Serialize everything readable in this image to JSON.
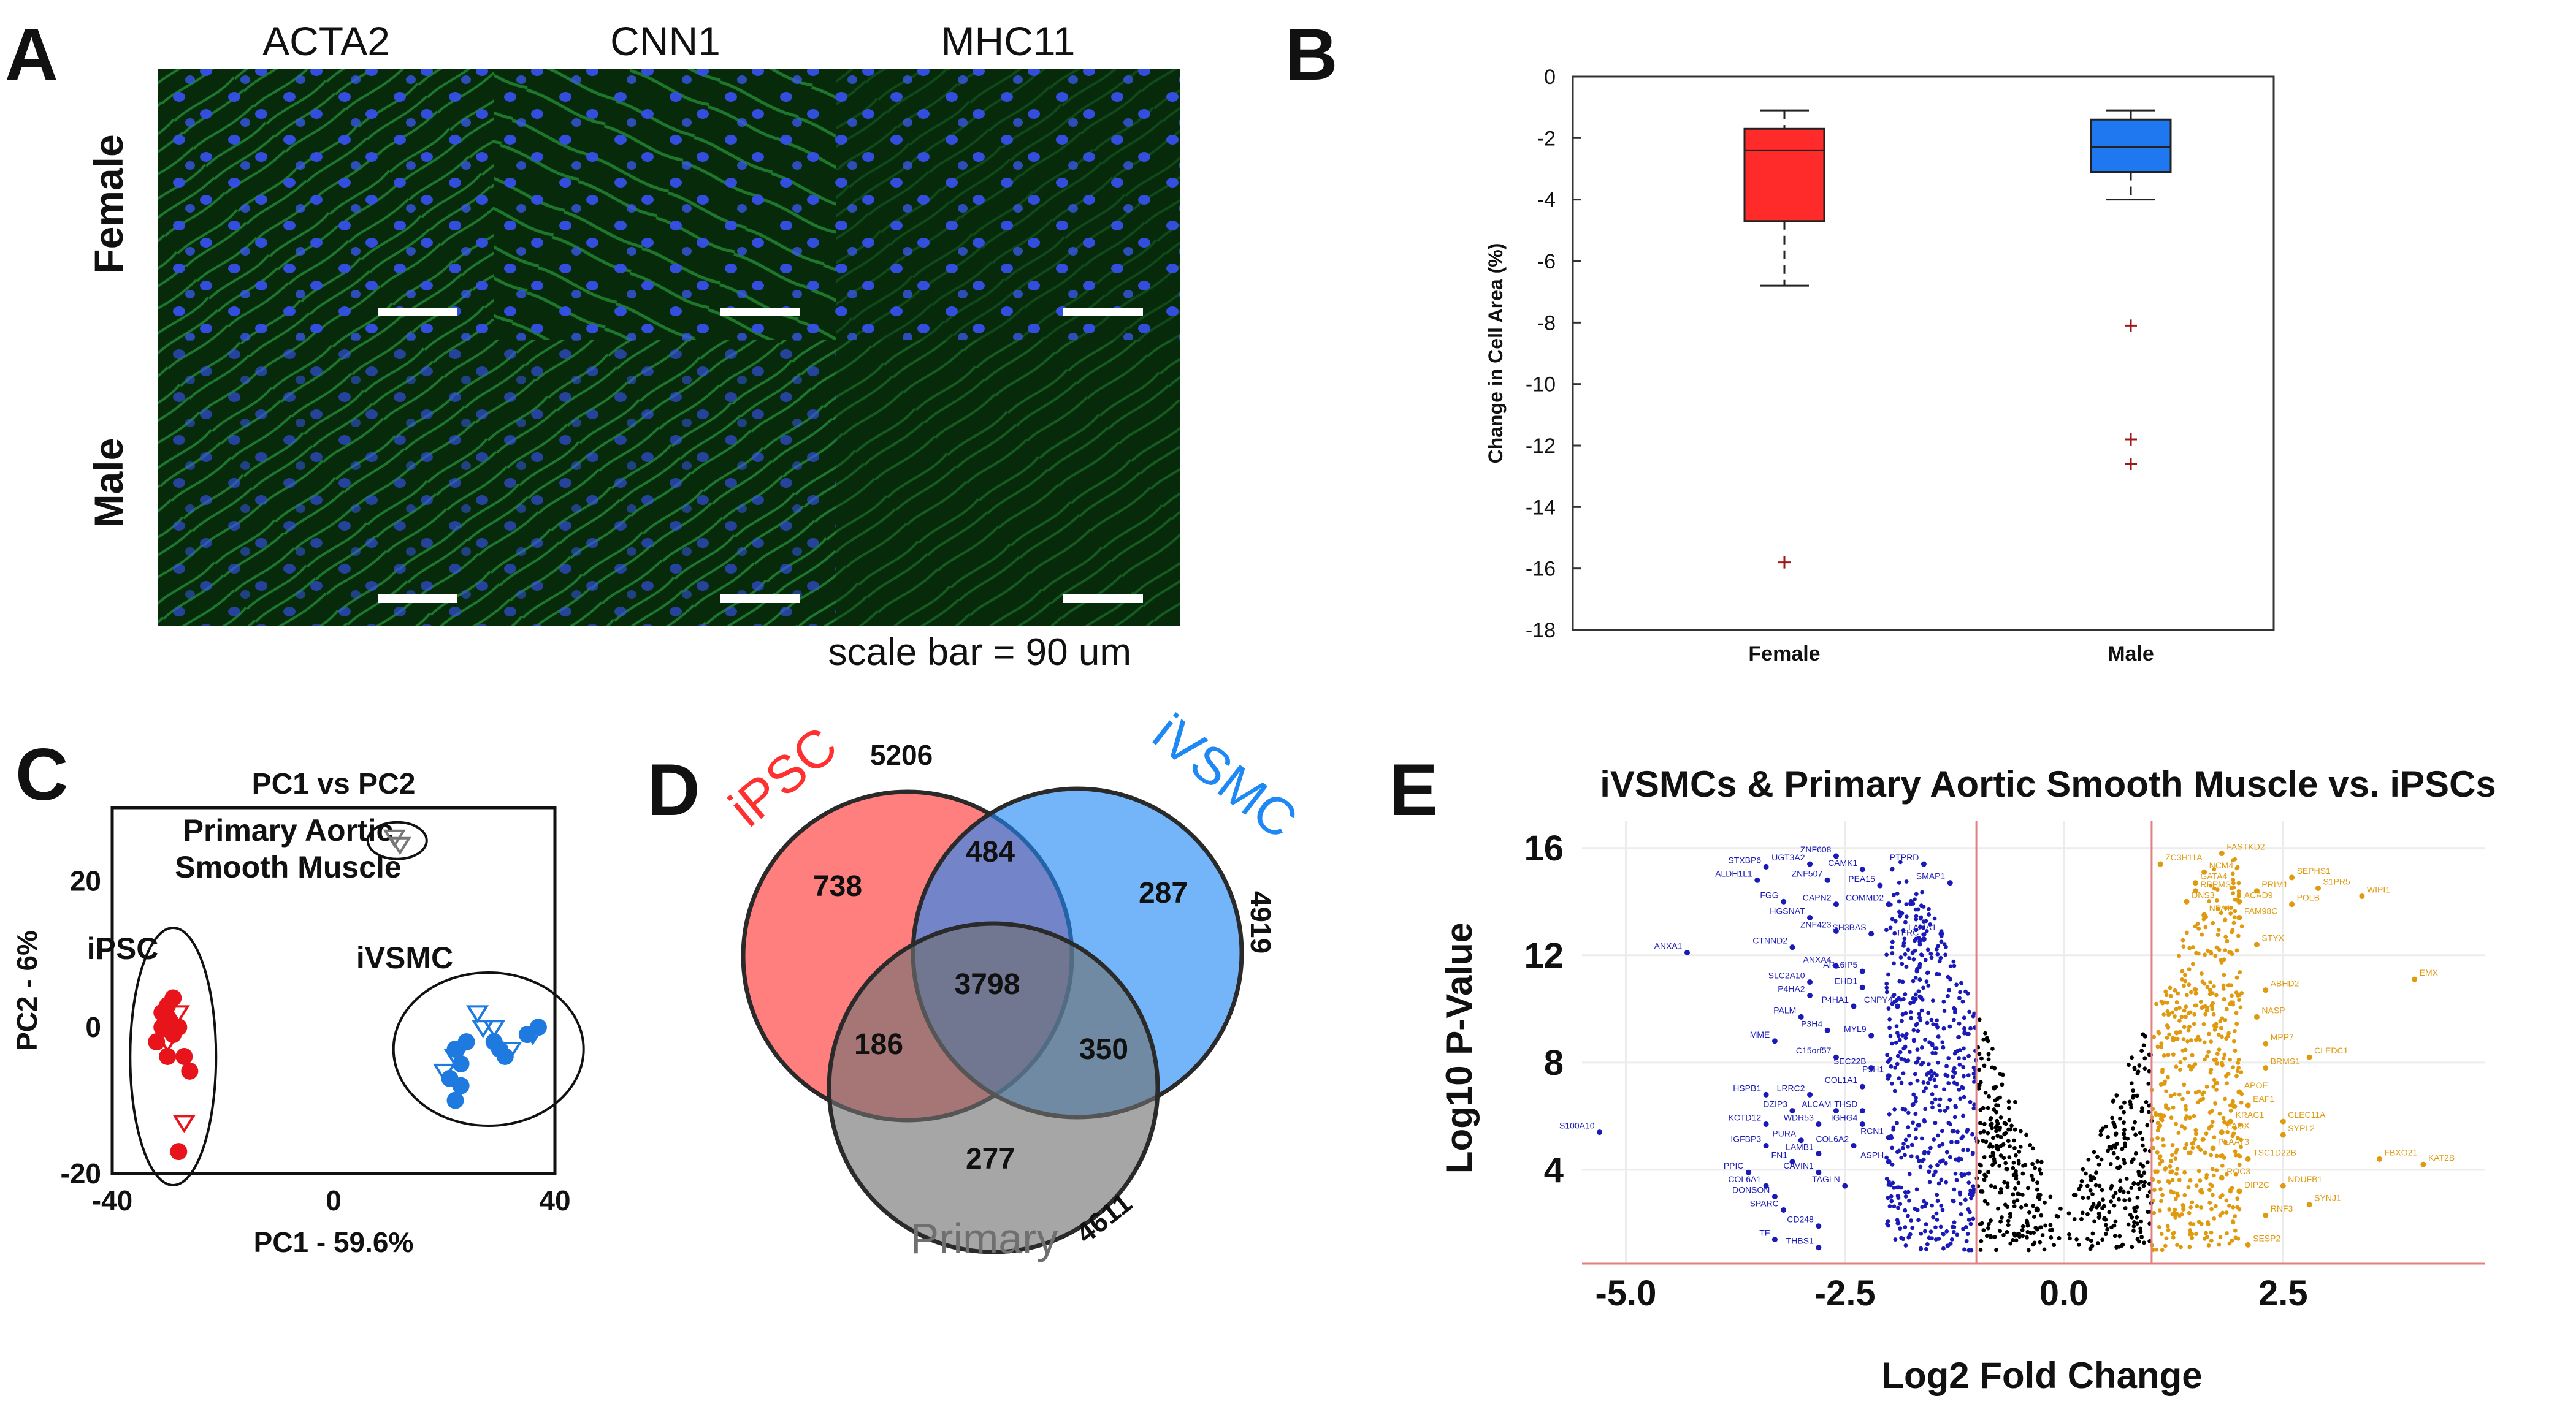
{
  "panels": {
    "a": "A",
    "b": "B",
    "c": "C",
    "d": "D",
    "e": "E"
  },
  "panel_a": {
    "columns": [
      "ACTA2",
      "CNN1",
      "MHC11"
    ],
    "rows": [
      "Female",
      "Male"
    ],
    "scale_note": "scale bar = 90 um",
    "colors": {
      "cytoskeleton": "#22b14c",
      "nuclei": "#3050e0",
      "background": "#062a0a"
    }
  },
  "chart_data": [
    {
      "panel": "B",
      "type": "box",
      "title": "",
      "xlabel": "",
      "ylabel": "Change in Cell Area (%)",
      "ylim": [
        -18,
        0
      ],
      "yticks": [
        0,
        -2,
        -4,
        -6,
        -8,
        -10,
        -12,
        -14,
        -16,
        -18
      ],
      "categories": [
        "Female",
        "Male"
      ],
      "boxes": [
        {
          "name": "Female",
          "color": "#ff2a2a",
          "whisker_high": -1.1,
          "q3": -1.7,
          "median": -2.4,
          "q1": -4.7,
          "whisker_low": -6.8,
          "outliers": [
            -15.8
          ]
        },
        {
          "name": "Male",
          "color": "#1f78f0",
          "whisker_high": -1.1,
          "q3": -1.4,
          "median": -2.3,
          "q1": -3.1,
          "whisker_low": -4.0,
          "outliers": [
            -8.1,
            -11.8,
            -12.6
          ]
        }
      ]
    },
    {
      "panel": "C",
      "type": "scatter",
      "title": "PC1 vs PC2",
      "xlabel": "PC1 - 59.6%",
      "ylabel": "PC2 - 6%",
      "xlim": [
        -40,
        40
      ],
      "ylim": [
        -20,
        30
      ],
      "xticks": [
        -40,
        0,
        40
      ],
      "yticks": [
        20,
        0,
        -20
      ],
      "groups": [
        {
          "name": "iPSC",
          "color": "#e8141b",
          "filled": [
            [
              -30,
              3
            ],
            [
              -31,
              2
            ],
            [
              -29,
              4
            ],
            [
              -31,
              0
            ],
            [
              -29,
              -1
            ],
            [
              -32,
              -2
            ],
            [
              -28,
              0
            ],
            [
              -30,
              -4
            ],
            [
              -27,
              -4
            ],
            [
              -26,
              -6
            ],
            [
              -28,
              -17
            ],
            [
              -30,
              1
            ]
          ],
          "open": [
            [
              -28,
              2
            ],
            [
              -29,
              0
            ],
            [
              -27,
              -13
            ],
            [
              -30,
              -2
            ]
          ]
        },
        {
          "name": "iVSMC",
          "color": "#1f7ae0",
          "filled": [
            [
              22,
              -3
            ],
            [
              23,
              -5
            ],
            [
              21,
              -7
            ],
            [
              24,
              -2
            ],
            [
              22,
              -10
            ],
            [
              29,
              -2
            ],
            [
              31,
              -4
            ],
            [
              35,
              -1
            ],
            [
              37,
              0
            ],
            [
              30,
              -3
            ],
            [
              23,
              -8
            ]
          ],
          "open": [
            [
              26,
              2
            ],
            [
              27,
              0
            ],
            [
              22,
              -4
            ],
            [
              20,
              -6
            ],
            [
              32,
              -3
            ],
            [
              36,
              -1
            ],
            [
              29,
              0
            ]
          ]
        },
        {
          "name": "Primary Aortic Smooth Muscle",
          "color": "#777777",
          "filled": [],
          "open": [
            [
              11,
              26
            ],
            [
              12,
              25
            ]
          ]
        }
      ],
      "annotations": {
        "ipsc": "iPSC",
        "ivsmc": "iVSMC",
        "primary_line1": "Primary Aortic",
        "primary_line2": "Smooth Muscle"
      }
    },
    {
      "panel": "D",
      "type": "venn",
      "sets": [
        {
          "name": "iPSC",
          "total": "5206",
          "color": "#ff3030"
        },
        {
          "name": "iVSMC",
          "total": "4919",
          "color": "#1e88f5"
        },
        {
          "name": "Primary",
          "total": "4611",
          "color": "#6f6f6f"
        }
      ],
      "regions": {
        "ipsc_only": "738",
        "ivsmc_only": "287",
        "primary_only": "277",
        "ipsc_ivsmc": "484",
        "ipsc_primary": "186",
        "ivsmc_primary": "350",
        "all": "3798"
      }
    },
    {
      "panel": "E",
      "type": "scatter",
      "title": "iVSMCs & Primary Aortic Smooth Muscle vs. iPSCs",
      "xlabel": "Log2 Fold Change",
      "ylabel": "Log10 P-Value",
      "xlim": [
        -5.5,
        4.8
      ],
      "ylim": [
        0.5,
        17
      ],
      "xticks": [
        -5.0,
        -2.5,
        0.0,
        2.5
      ],
      "xtick_labels": [
        "-5.0",
        "-2.5",
        "0.0",
        "2.5"
      ],
      "yticks": [
        4,
        8,
        12,
        16
      ],
      "thresholds": [
        -1,
        1
      ],
      "colors": {
        "down": "#1a1ab8",
        "ns": "#000000",
        "up": "#e09a10",
        "threshold": "#e08080"
      },
      "down_genes": [
        {
          "g": "STXBP6",
          "x": -3.4,
          "y": 15.3
        },
        {
          "g": "UGT3A2",
          "x": -2.9,
          "y": 15.4
        },
        {
          "g": "ZNF608",
          "x": -2.6,
          "y": 15.7
        },
        {
          "g": "PTPRD",
          "x": -1.6,
          "y": 15.4
        },
        {
          "g": "ALDH1L1",
          "x": -3.5,
          "y": 14.8
        },
        {
          "g": "ZNF507",
          "x": -2.7,
          "y": 14.8
        },
        {
          "g": "CAMK1",
          "x": -2.3,
          "y": 15.2
        },
        {
          "g": "PEA15",
          "x": -2.1,
          "y": 14.6
        },
        {
          "g": "FGG",
          "x": -3.2,
          "y": 14.0
        },
        {
          "g": "CAPN2",
          "x": -2.6,
          "y": 13.9
        },
        {
          "g": "COMMD2",
          "x": -2.0,
          "y": 13.9
        },
        {
          "g": "SMAP1",
          "x": -1.3,
          "y": 14.7
        },
        {
          "g": "HGSNAT",
          "x": -2.9,
          "y": 13.4
        },
        {
          "g": "ZNF423",
          "x": -2.6,
          "y": 12.9
        },
        {
          "g": "SH3BAS",
          "x": -2.2,
          "y": 12.8
        },
        {
          "g": "TFRC",
          "x": -1.6,
          "y": 12.6
        },
        {
          "g": "LAMA1",
          "x": -1.4,
          "y": 12.8
        },
        {
          "g": "ANXA1",
          "x": -4.3,
          "y": 12.1
        },
        {
          "g": "CTNND2",
          "x": -3.1,
          "y": 12.3
        },
        {
          "g": "ANXA4",
          "x": -2.6,
          "y": 11.6
        },
        {
          "g": "ARL6IP5",
          "x": -2.3,
          "y": 11.4
        },
        {
          "g": "SLC2A10",
          "x": -2.9,
          "y": 11.0
        },
        {
          "g": "EHD1",
          "x": -2.3,
          "y": 10.8
        },
        {
          "g": "P4HA2",
          "x": -2.9,
          "y": 10.5
        },
        {
          "g": "CNPY4",
          "x": -1.9,
          "y": 10.1
        },
        {
          "g": "P4HA1",
          "x": -2.4,
          "y": 10.1
        },
        {
          "g": "PALM",
          "x": -3.0,
          "y": 9.7
        },
        {
          "g": "P3H4",
          "x": -2.7,
          "y": 9.2
        },
        {
          "g": "MYL9",
          "x": -2.2,
          "y": 9.0
        },
        {
          "g": "MME",
          "x": -3.3,
          "y": 8.8
        },
        {
          "g": "C15orf57",
          "x": -2.6,
          "y": 8.2
        },
        {
          "g": "SEC22B",
          "x": -2.2,
          "y": 7.8
        },
        {
          "g": "P3H1",
          "x": -2.0,
          "y": 7.5
        },
        {
          "g": "COL1A1",
          "x": -2.3,
          "y": 7.1
        },
        {
          "g": "HSPB1",
          "x": -3.4,
          "y": 6.8
        },
        {
          "g": "LRRC2",
          "x": -2.9,
          "y": 6.8
        },
        {
          "g": "DZIP3",
          "x": -3.1,
          "y": 6.2
        },
        {
          "g": "ALCAM",
          "x": -2.6,
          "y": 6.2
        },
        {
          "g": "THSD",
          "x": -2.3,
          "y": 6.2
        },
        {
          "g": "KCTD12",
          "x": -3.4,
          "y": 5.7
        },
        {
          "g": "WDR53",
          "x": -2.8,
          "y": 5.7
        },
        {
          "g": "IGHG4",
          "x": -2.3,
          "y": 5.7
        },
        {
          "g": "S100A10",
          "x": -5.3,
          "y": 5.4
        },
        {
          "g": "PURA",
          "x": -3.0,
          "y": 5.1
        },
        {
          "g": "RCN1",
          "x": -2.0,
          "y": 5.2
        },
        {
          "g": "IGFBP3",
          "x": -3.4,
          "y": 4.9
        },
        {
          "g": "COL6A2",
          "x": -2.4,
          "y": 4.9
        },
        {
          "g": "LAMB1",
          "x": -2.8,
          "y": 4.6
        },
        {
          "g": "FN1",
          "x": -3.1,
          "y": 4.3
        },
        {
          "g": "ASPH",
          "x": -2.0,
          "y": 4.3
        },
        {
          "g": "PPIC",
          "x": -3.6,
          "y": 3.9
        },
        {
          "g": "CAVIN1",
          "x": -2.8,
          "y": 3.9
        },
        {
          "g": "COL6A1",
          "x": -3.4,
          "y": 3.4
        },
        {
          "g": "TAGLN",
          "x": -2.5,
          "y": 3.4
        },
        {
          "g": "DONSON",
          "x": -3.3,
          "y": 3.0
        },
        {
          "g": "SPARC",
          "x": -3.2,
          "y": 2.5
        },
        {
          "g": "CD248",
          "x": -2.8,
          "y": 1.9
        },
        {
          "g": "TF",
          "x": -3.3,
          "y": 1.4
        },
        {
          "g": "THBS1",
          "x": -2.8,
          "y": 1.1
        }
      ],
      "up_genes": [
        {
          "g": "FASTKD2",
          "x": 1.8,
          "y": 15.8
        },
        {
          "g": "ZC3H11A",
          "x": 1.1,
          "y": 15.4
        },
        {
          "g": "NCM4",
          "x": 1.6,
          "y": 15.1
        },
        {
          "g": "SEPHS1",
          "x": 2.6,
          "y": 14.9
        },
        {
          "g": "GATA4",
          "x": 1.5,
          "y": 14.7
        },
        {
          "g": "S1PR5",
          "x": 2.9,
          "y": 14.5
        },
        {
          "g": "RBPMS",
          "x": 1.5,
          "y": 14.4
        },
        {
          "g": "PRIM1",
          "x": 2.2,
          "y": 14.4
        },
        {
          "g": "WIPI1",
          "x": 3.4,
          "y": 14.2
        },
        {
          "g": "DNS3",
          "x": 1.4,
          "y": 14.0
        },
        {
          "g": "ACAD9",
          "x": 2.0,
          "y": 14.0
        },
        {
          "g": "POLB",
          "x": 2.6,
          "y": 13.9
        },
        {
          "g": "NPA1",
          "x": 1.6,
          "y": 13.5
        },
        {
          "g": "FAM98C",
          "x": 2.0,
          "y": 13.4
        },
        {
          "g": "STYX",
          "x": 2.2,
          "y": 12.4
        },
        {
          "g": "EMX",
          "x": 4.0,
          "y": 11.1
        },
        {
          "g": "ABHD2",
          "x": 2.3,
          "y": 10.7
        },
        {
          "g": "NASP",
          "x": 2.2,
          "y": 9.7
        },
        {
          "g": "MPP7",
          "x": 2.3,
          "y": 8.7
        },
        {
          "g": "CLEDC1",
          "x": 2.8,
          "y": 8.2
        },
        {
          "g": "BRMS1",
          "x": 2.3,
          "y": 7.8
        },
        {
          "g": "APOE",
          "x": 2.0,
          "y": 6.9
        },
        {
          "g": "EAF1",
          "x": 2.1,
          "y": 6.4
        },
        {
          "g": "KRAC1",
          "x": 1.9,
          "y": 5.8
        },
        {
          "g": "CLEC11A",
          "x": 2.5,
          "y": 5.8
        },
        {
          "g": "FAOX",
          "x": 1.8,
          "y": 5.4
        },
        {
          "g": "SYPL2",
          "x": 2.5,
          "y": 5.3
        },
        {
          "g": "PLAAT3",
          "x": 1.7,
          "y": 4.8
        },
        {
          "g": "TSC1D22B",
          "x": 2.1,
          "y": 4.4
        },
        {
          "g": "FBXO21",
          "x": 3.6,
          "y": 4.4
        },
        {
          "g": "KAT2B",
          "x": 4.1,
          "y": 4.2
        },
        {
          "g": "ROC3",
          "x": 1.8,
          "y": 3.7
        },
        {
          "g": "NDUFB1",
          "x": 2.5,
          "y": 3.4
        },
        {
          "g": "DIP2C",
          "x": 2.0,
          "y": 3.2
        },
        {
          "g": "SYNJ1",
          "x": 2.8,
          "y": 2.7
        },
        {
          "g": "RNF3",
          "x": 2.3,
          "y": 2.3
        },
        {
          "g": "SESP2",
          "x": 2.1,
          "y": 1.2
        }
      ]
    }
  ]
}
